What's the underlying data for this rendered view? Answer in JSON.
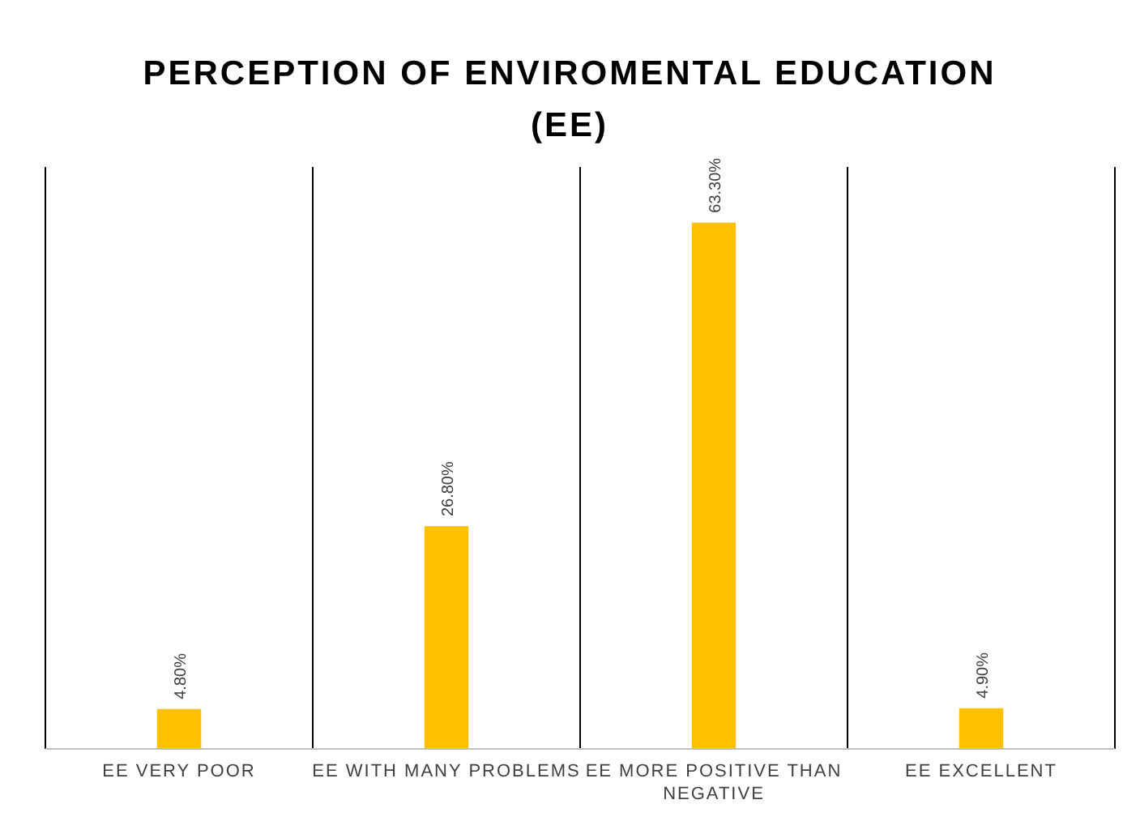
{
  "chart_data": {
    "type": "bar",
    "title": "PERCEPTION OF ENVIROMENTAL EDUCATION (EE)",
    "categories": [
      "EE VERY POOR",
      "EE WITH MANY PROBLEMS",
      "EE MORE POSITIVE THAN NEGATIVE",
      "EE EXCELLENT"
    ],
    "values": [
      4.8,
      26.8,
      63.3,
      4.9
    ],
    "value_labels": [
      "4.80%",
      "26.80%",
      "63.30%",
      "4.90%"
    ],
    "color": "#ffc000",
    "ylim": [
      0,
      70
    ],
    "grid": "x",
    "tick_labels": "x"
  }
}
